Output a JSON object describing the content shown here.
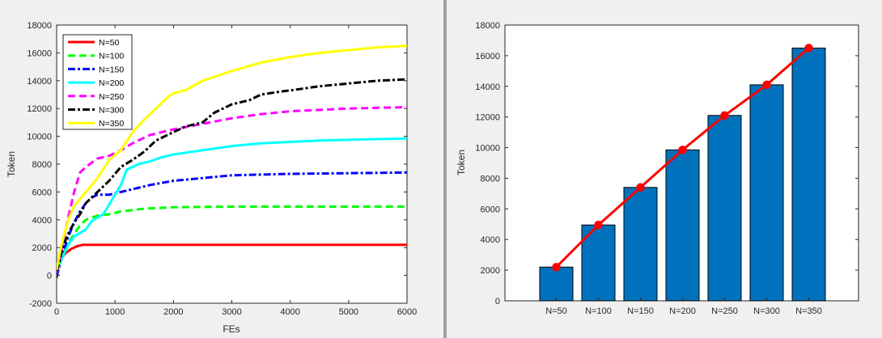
{
  "colors": {
    "panel_bg": "#f0f0f0",
    "divider": "#a0a0a0",
    "bar_fill": "#0072bd",
    "trend_line": "#ff0000"
  },
  "chart_data": [
    {
      "type": "line",
      "title": "",
      "xlabel": "FEs",
      "ylabel": "Token",
      "xlim": [
        0,
        6000
      ],
      "ylim": [
        -2000,
        18000
      ],
      "xticks": [
        0,
        1000,
        2000,
        3000,
        4000,
        5000,
        6000
      ],
      "yticks": [
        -2000,
        0,
        2000,
        4000,
        6000,
        8000,
        10000,
        12000,
        14000,
        16000,
        18000
      ],
      "grid": false,
      "legend_position": "top-left",
      "series": [
        {
          "name": "N=50",
          "color": "#ff0000",
          "style": "solid",
          "x": [
            0,
            30,
            80,
            150,
            250,
            350,
            450,
            600,
            1000,
            2000,
            3000,
            4000,
            5000,
            6000
          ],
          "y": [
            -200,
            600,
            1200,
            1600,
            1900,
            2100,
            2200,
            2200,
            2200,
            2200,
            2200,
            2200,
            2200,
            2200
          ]
        },
        {
          "name": "N=100",
          "color": "#00ff00",
          "style": "dashed",
          "x": [
            0,
            50,
            100,
            200,
            300,
            400,
            500,
            700,
            900,
            1100,
            1500,
            2000,
            3000,
            4000,
            5000,
            6000
          ],
          "y": [
            200,
            800,
            1500,
            2300,
            3000,
            3600,
            4000,
            4300,
            4400,
            4600,
            4800,
            4900,
            4950,
            4950,
            4950,
            4950
          ]
        },
        {
          "name": "N=150",
          "color": "#0000ff",
          "style": "dashdot",
          "x": [
            0,
            50,
            100,
            200,
            300,
            400,
            500,
            600,
            700,
            900,
            1100,
            1300,
            1600,
            2000,
            2500,
            3000,
            4000,
            5000,
            6000
          ],
          "y": [
            -100,
            700,
            1500,
            2800,
            3800,
            4600,
            5200,
            5600,
            5800,
            5800,
            6000,
            6200,
            6500,
            6800,
            7000,
            7200,
            7300,
            7350,
            7400
          ]
        },
        {
          "name": "N=200",
          "color": "#00ffff",
          "style": "solid",
          "x": [
            0,
            50,
            100,
            200,
            300,
            500,
            600,
            800,
            1000,
            1100,
            1200,
            1400,
            1600,
            1800,
            2000,
            2500,
            3000,
            3500,
            4000,
            4500,
            5000,
            5500,
            6000
          ],
          "y": [
            300,
            800,
            1300,
            2200,
            2800,
            3300,
            3900,
            4400,
            5800,
            6500,
            7600,
            8000,
            8200,
            8500,
            8700,
            9000,
            9300,
            9500,
            9600,
            9700,
            9750,
            9800,
            9850
          ]
        },
        {
          "name": "N=250",
          "color": "#ff00ff",
          "style": "dashed",
          "x": [
            0,
            50,
            100,
            200,
            300,
            400,
            500,
            700,
            900,
            1100,
            1300,
            1600,
            1800,
            2000,
            2500,
            3000,
            3500,
            4000,
            4500,
            5000,
            5500,
            6000
          ],
          "y": [
            200,
            1000,
            2200,
            4200,
            6000,
            7400,
            7800,
            8400,
            8600,
            9000,
            9500,
            10100,
            10300,
            10500,
            10900,
            11300,
            11600,
            11800,
            11900,
            12000,
            12050,
            12100
          ]
        },
        {
          "name": "N=300",
          "color": "#000000",
          "style": "dashdot",
          "x": [
            0,
            50,
            100,
            200,
            300,
            400,
            500,
            700,
            900,
            1000,
            1100,
            1300,
            1500,
            1700,
            2000,
            2200,
            2500,
            2700,
            3000,
            3300,
            3500,
            3800,
            4000,
            4500,
            5000,
            5500,
            6000
          ],
          "y": [
            300,
            1000,
            2000,
            3000,
            3800,
            4400,
            5200,
            6000,
            6800,
            7300,
            7800,
            8300,
            8900,
            9700,
            10300,
            10700,
            11000,
            11700,
            12300,
            12600,
            13000,
            13200,
            13300,
            13600,
            13800,
            14000,
            14100
          ]
        },
        {
          "name": "N=350",
          "color": "#ffff00",
          "style": "solid",
          "x": [
            0,
            50,
            100,
            200,
            300,
            400,
            500,
            700,
            900,
            1100,
            1300,
            1500,
            1700,
            1900,
            2000,
            2200,
            2500,
            3000,
            3500,
            4000,
            4500,
            5000,
            5500,
            6000
          ],
          "y": [
            400,
            1500,
            2500,
            4000,
            5000,
            5500,
            6000,
            7000,
            8300,
            9000,
            10300,
            11200,
            12000,
            12800,
            13100,
            13300,
            14000,
            14700,
            15300,
            15700,
            16000,
            16200,
            16400,
            16500
          ]
        }
      ]
    },
    {
      "type": "bar",
      "title": "",
      "xlabel": "",
      "ylabel": "Token",
      "categories": [
        "N=50",
        "N=100",
        "N=150",
        "N=200",
        "N=250",
        "N=300",
        "N=350"
      ],
      "values": [
        2200,
        4950,
        7400,
        9850,
        12100,
        14100,
        16500
      ],
      "ylim": [
        0,
        18000
      ],
      "yticks": [
        0,
        2000,
        4000,
        6000,
        8000,
        10000,
        12000,
        14000,
        16000,
        18000
      ],
      "grid": false,
      "overlay_line": {
        "values": [
          2200,
          4950,
          7400,
          9850,
          12100,
          14100,
          16500
        ],
        "marker": "circle"
      }
    }
  ]
}
